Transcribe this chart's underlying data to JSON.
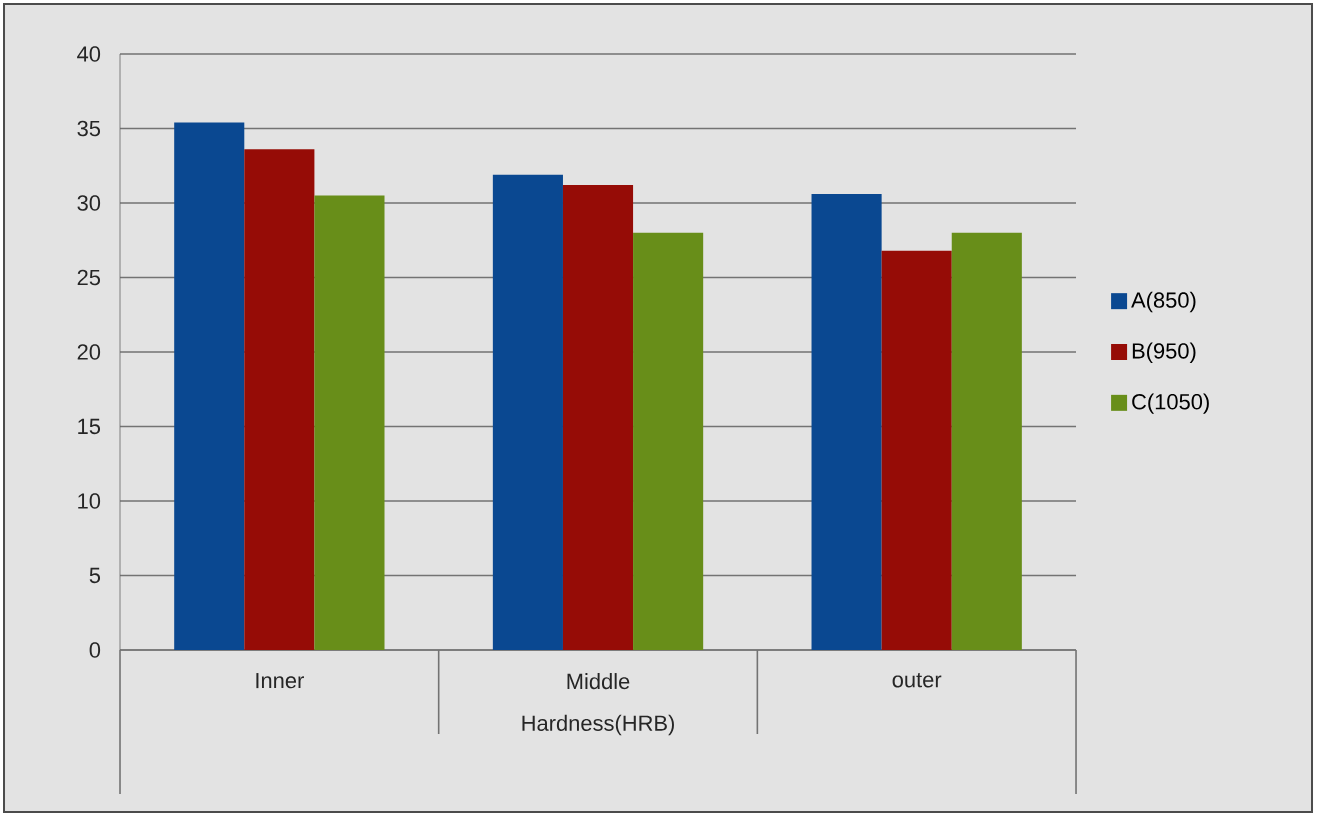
{
  "chart_data": {
    "type": "bar",
    "xlabel": "Hardness(HRB)",
    "categories": [
      "Inner",
      "Middle",
      "outer"
    ],
    "series": [
      {
        "name": "A(850)",
        "color": "#0a4891",
        "values": [
          35.4,
          31.9,
          30.6
        ]
      },
      {
        "name": "B(950)",
        "color": "#960c06",
        "values": [
          33.6,
          31.2,
          26.8
        ]
      },
      {
        "name": "C(1050)",
        "color": "#688e19",
        "values": [
          30.5,
          28.0,
          28.0
        ]
      }
    ],
    "ylim": [
      0,
      40
    ],
    "yticks": [
      0,
      5,
      10,
      15,
      20,
      25,
      30,
      35,
      40
    ],
    "grid": "y",
    "legend": "right"
  }
}
